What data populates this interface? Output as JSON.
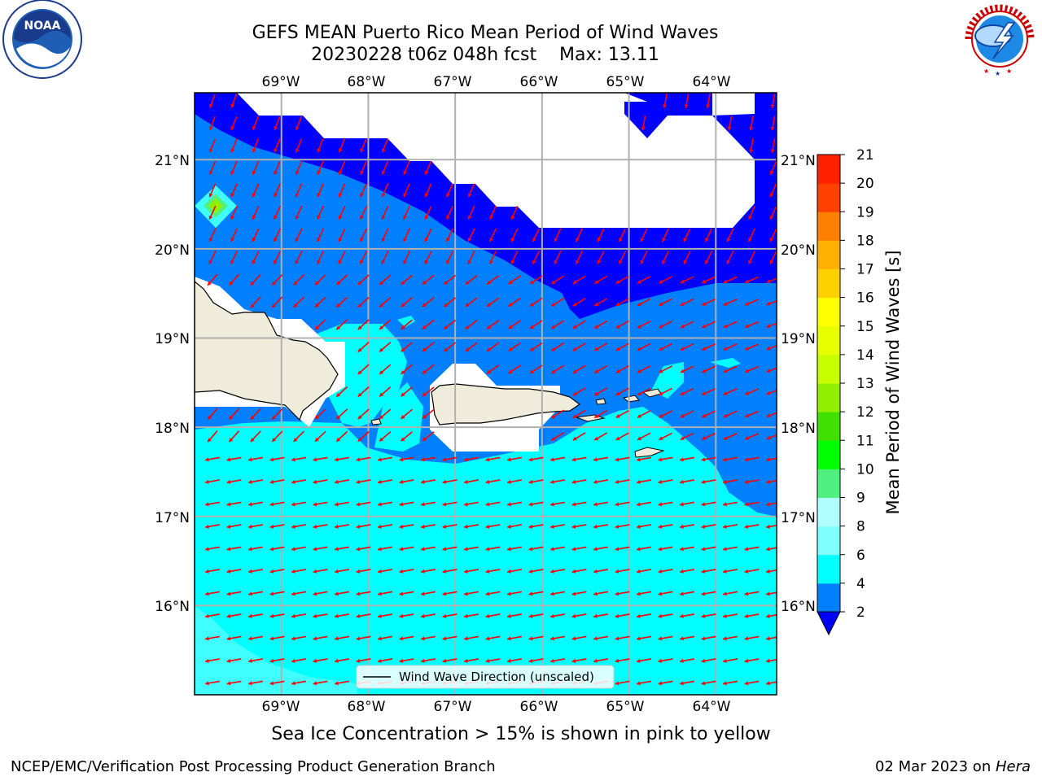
{
  "title": {
    "line1": "GEFS MEAN Puerto Rico Mean Period of Wind Waves",
    "line2": "20230228 t06z 048h fcst    Max: 13.11"
  },
  "logos": {
    "left": "NOAA",
    "left_ring_text": "NATIONAL OCEANIC AND ATMOSPHERIC ADMINISTRATION · U.S. DEPARTMENT OF COMMERCE",
    "right_ring_text": "NATIONAL WEATHER SERVICE"
  },
  "map": {
    "lon_labels": [
      "69°W",
      "68°W",
      "67°W",
      "66°W",
      "65°W",
      "64°W"
    ],
    "lat_labels": [
      "21°N",
      "20°N",
      "19°N",
      "18°N",
      "17°N",
      "16°N"
    ],
    "lon_range": [
      -70.0,
      -63.3
    ],
    "lat_range": [
      15.0,
      21.75
    ],
    "legend_label": "Wind Wave Direction (unscaled)",
    "arrow_color": "#ff0000",
    "land_color": "#efecdc",
    "ocean_color_2_4": "#0080ff",
    "ocean_color_4_6": "#00ffff",
    "ocean_color_under_2": "#0000ff",
    "no_data_color": "#ffffff"
  },
  "colorbar": {
    "title": "Mean Period of Wind Waves [s]",
    "ticks": [
      "2",
      "4",
      "6",
      "8",
      "9",
      "10",
      "11",
      "12",
      "13",
      "14",
      "15",
      "16",
      "17",
      "18",
      "19",
      "20",
      "21"
    ],
    "colors": [
      "#0080ff",
      "#00ffff",
      "#40ffff",
      "#80ffff",
      "#b0ffff",
      "#50f080",
      "#00ff00",
      "#40e000",
      "#90f000",
      "#c8ff00",
      "#e8ff00",
      "#ffff00",
      "#ffd000",
      "#ffb000",
      "#ff8000",
      "#ff4000",
      "#ff2000",
      "#ff0000"
    ],
    "extend_color": "#0000ff"
  },
  "caption": "Sea Ice Concentration > 15% is shown in pink to yellow",
  "footer": {
    "left": "NCEP/EMC/Verification Post Processing Product Generation Branch",
    "right_date": "02 Mar 2023 on ",
    "right_host": "Hera"
  }
}
